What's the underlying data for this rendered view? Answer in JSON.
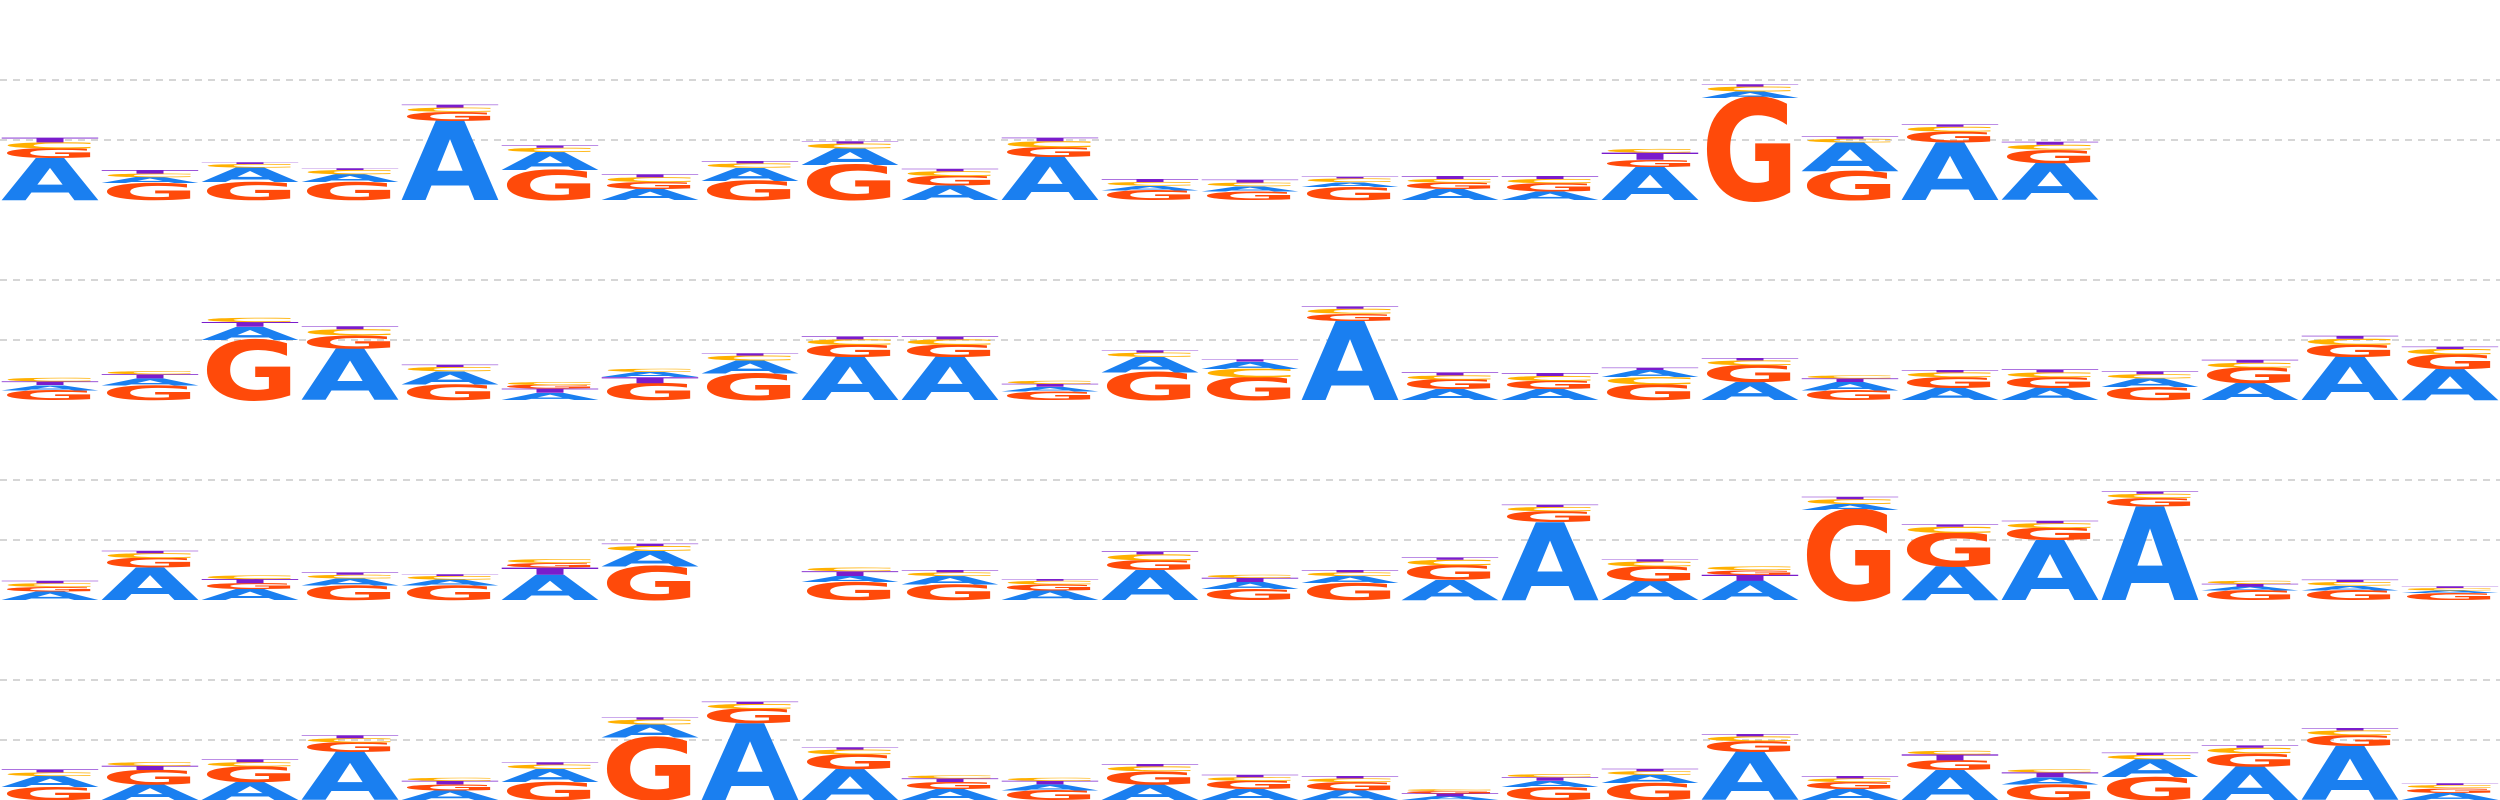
{
  "chart_data": {
    "type": "sequence-logo",
    "colors": {
      "A": "#1a7ff0",
      "C": "#ffb000",
      "G": "#ff4a0a",
      "T": "#7a1ccc"
    },
    "rows": [
      {
        "row_index": 0,
        "positions": [
          {
            "A": 0.7,
            "G": 0.16,
            "C": 0.1,
            "T": 0.08
          },
          {
            "G": 0.28,
            "A": 0.1,
            "C": 0.06,
            "T": 0.06
          },
          {
            "G": 0.3,
            "A": 0.24,
            "C": 0.06,
            "T": 0.03
          },
          {
            "G": 0.3,
            "A": 0.13,
            "C": 0.07,
            "T": 0.03
          },
          {
            "A": 1.32,
            "G": 0.15,
            "C": 0.07,
            "T": 0.05
          },
          {
            "G": 0.5,
            "A": 0.3,
            "C": 0.07,
            "T": 0.04
          },
          {
            "A": 0.18,
            "G": 0.12,
            "C": 0.08,
            "T": 0.05
          },
          {
            "G": 0.32,
            "A": 0.22,
            "C": 0.07,
            "T": 0.04
          },
          {
            "G": 0.58,
            "A": 0.28,
            "C": 0.08,
            "T": 0.04
          },
          {
            "A": 0.24,
            "G": 0.16,
            "C": 0.08,
            "T": 0.04
          },
          {
            "A": 0.72,
            "G": 0.16,
            "C": 0.1,
            "T": 0.06
          },
          {
            "G": 0.16,
            "A": 0.08,
            "C": 0.06,
            "T": 0.05
          },
          {
            "G": 0.14,
            "A": 0.09,
            "C": 0.06,
            "T": 0.05
          },
          {
            "G": 0.22,
            "A": 0.08,
            "C": 0.06,
            "T": 0.03
          },
          {
            "A": 0.18,
            "G": 0.11,
            "C": 0.06,
            "T": 0.05
          },
          {
            "A": 0.14,
            "G": 0.14,
            "C": 0.07,
            "T": 0.05
          },
          {
            "A": 0.55,
            "G": 0.12,
            "T": 0.12,
            "C": 0.06
          },
          {
            "G": 1.7,
            "A": 0.11,
            "C": 0.08,
            "T": 0.04
          },
          {
            "G": 0.48,
            "A": 0.48,
            "C": 0.06,
            "T": 0.04
          },
          {
            "A": 0.96,
            "G": 0.18,
            "C": 0.08,
            "T": 0.04
          },
          {
            "A": 0.62,
            "G": 0.22,
            "C": 0.08,
            "T": 0.05
          }
        ]
      },
      {
        "row_index": 1,
        "positions": [
          {
            "G": 0.16,
            "A": 0.09,
            "T": 0.06,
            "C": 0.06
          },
          {
            "G": 0.24,
            "A": 0.12,
            "T": 0.07,
            "C": 0.05
          },
          {
            "G": 1.0,
            "A": 0.22,
            "T": 0.08,
            "C": 0.07
          },
          {
            "A": 0.86,
            "G": 0.22,
            "C": 0.1,
            "T": 0.05
          },
          {
            "G": 0.26,
            "A": 0.22,
            "C": 0.07,
            "T": 0.04
          },
          {
            "A": 0.12,
            "T": 0.07,
            "G": 0.06,
            "C": 0.05
          },
          {
            "G": 0.28,
            "T": 0.1,
            "A": 0.09,
            "C": 0.05
          },
          {
            "G": 0.44,
            "A": 0.22,
            "C": 0.08,
            "T": 0.04
          },
          {
            "A": 0.72,
            "G": 0.2,
            "C": 0.09,
            "T": 0.05
          },
          {
            "A": 0.72,
            "G": 0.2,
            "C": 0.09,
            "T": 0.05
          },
          {
            "G": 0.14,
            "A": 0.08,
            "T": 0.05,
            "C": 0.05
          },
          {
            "G": 0.46,
            "A": 0.26,
            "C": 0.07,
            "T": 0.04
          },
          {
            "G": 0.38,
            "C": 0.14,
            "A": 0.12,
            "T": 0.04
          },
          {
            "A": 1.32,
            "G": 0.12,
            "C": 0.08,
            "T": 0.04
          },
          {
            "A": 0.18,
            "G": 0.16,
            "C": 0.07,
            "T": 0.05
          },
          {
            "A": 0.18,
            "G": 0.14,
            "C": 0.08,
            "T": 0.05
          },
          {
            "G": 0.26,
            "C": 0.12,
            "A": 0.12,
            "T": 0.04
          },
          {
            "A": 0.3,
            "G": 0.28,
            "C": 0.08,
            "T": 0.04
          },
          {
            "G": 0.16,
            "A": 0.14,
            "T": 0.06,
            "C": 0.05
          },
          {
            "A": 0.2,
            "G": 0.18,
            "C": 0.08,
            "T": 0.04
          },
          {
            "A": 0.2,
            "G": 0.18,
            "C": 0.08,
            "T": 0.05
          },
          {
            "G": 0.22,
            "A": 0.14,
            "C": 0.07,
            "T": 0.05
          },
          {
            "A": 0.28,
            "G": 0.26,
            "C": 0.08,
            "T": 0.05
          },
          {
            "A": 0.72,
            "G": 0.2,
            "C": 0.1,
            "T": 0.05
          },
          {
            "A": 0.52,
            "G": 0.24,
            "C": 0.09,
            "T": 0.04
          }
        ]
      },
      {
        "row_index": 2,
        "positions": [
          {
            "A": 0.14,
            "G": 0.08,
            "C": 0.06,
            "T": 0.04
          },
          {
            "A": 0.54,
            "G": 0.16,
            "C": 0.08,
            "T": 0.04
          },
          {
            "A": 0.18,
            "G": 0.1,
            "T": 0.07,
            "C": 0.06
          },
          {
            "G": 0.24,
            "A": 0.12,
            "C": 0.06,
            "T": 0.04
          },
          {
            "G": 0.24,
            "A": 0.1,
            "C": 0.06,
            "T": 0.03
          },
          {
            "A": 0.42,
            "T": 0.12,
            "G": 0.08,
            "C": 0.06
          },
          {
            "G": 0.56,
            "A": 0.26,
            "C": 0.08,
            "T": 0.04
          },
          {},
          {
            "G": 0.3,
            "A": 0.1,
            "T": 0.08,
            "C": 0.06
          },
          {
            "G": 0.26,
            "A": 0.14,
            "C": 0.06,
            "T": 0.04
          },
          {
            "A": 0.16,
            "G": 0.1,
            "C": 0.06,
            "T": 0.03
          },
          {
            "A": 0.5,
            "G": 0.16,
            "C": 0.1,
            "T": 0.05
          },
          {
            "G": 0.18,
            "A": 0.12,
            "T": 0.07,
            "C": 0.05
          },
          {
            "G": 0.28,
            "A": 0.12,
            "C": 0.06,
            "T": 0.04
          },
          {
            "A": 0.34,
            "G": 0.24,
            "C": 0.09,
            "T": 0.04
          },
          {
            "A": 1.3,
            "G": 0.18,
            "C": 0.07,
            "T": 0.04
          },
          {
            "A": 0.32,
            "G": 0.24,
            "C": 0.08,
            "T": 0.04
          },
          {
            "A": 0.32,
            "T": 0.1,
            "G": 0.08,
            "C": 0.06
          },
          {
            "G": 1.5,
            "A": 0.1,
            "C": 0.08,
            "T": 0.04
          },
          {
            "A": 0.56,
            "G": 0.56,
            "C": 0.1,
            "T": 0.04
          },
          {
            "A": 1.0,
            "G": 0.2,
            "C": 0.08,
            "T": 0.04
          },
          {
            "A": 1.56,
            "G": 0.14,
            "C": 0.07,
            "T": 0.04
          },
          {
            "G": 0.16,
            "A": 0.06,
            "T": 0.05,
            "C": 0.05
          },
          {
            "G": 0.16,
            "A": 0.08,
            "C": 0.06,
            "T": 0.04
          },
          {
            "G": 0.12,
            "A": 0.04,
            "C": 0.04,
            "T": 0.03
          }
        ]
      },
      {
        "row_index": 3,
        "positions": [
          {
            "G": 0.22,
            "A": 0.18,
            "C": 0.06,
            "T": 0.05
          },
          {
            "A": 0.26,
            "G": 0.24,
            "T": 0.07,
            "C": 0.06
          },
          {
            "A": 0.3,
            "G": 0.26,
            "C": 0.07,
            "T": 0.05
          },
          {
            "A": 0.8,
            "G": 0.16,
            "C": 0.07,
            "T": 0.05
          },
          {
            "A": 0.16,
            "G": 0.1,
            "T": 0.06,
            "C": 0.05
          },
          {
            "G": 0.3,
            "A": 0.22,
            "C": 0.07,
            "T": 0.04
          },
          {
            "G": 1.04,
            "A": 0.22,
            "C": 0.08,
            "T": 0.04
          },
          {
            "A": 1.28,
            "G": 0.24,
            "C": 0.08,
            "T": 0.04
          },
          {
            "A": 0.52,
            "G": 0.24,
            "C": 0.08,
            "T": 0.04
          },
          {
            "A": 0.18,
            "G": 0.12,
            "T": 0.06,
            "C": 0.05
          },
          {
            "G": 0.16,
            "A": 0.1,
            "T": 0.06,
            "C": 0.05
          },
          {
            "A": 0.26,
            "G": 0.22,
            "C": 0.08,
            "T": 0.04
          },
          {
            "A": 0.18,
            "G": 0.14,
            "C": 0.06,
            "T": 0.04
          },
          {
            "A": 0.16,
            "G": 0.14,
            "C": 0.06,
            "T": 0.04
          },
          {
            "A": 0.06,
            "T": 0.05,
            "G": 0.04,
            "C": 0.03
          },
          {
            "G": 0.22,
            "A": 0.1,
            "T": 0.06,
            "C": 0.05
          },
          {
            "G": 0.28,
            "A": 0.14,
            "C": 0.06,
            "T": 0.04
          },
          {
            "A": 0.8,
            "G": 0.18,
            "C": 0.08,
            "T": 0.04
          },
          {
            "A": 0.18,
            "G": 0.12,
            "C": 0.06,
            "T": 0.04
          },
          {
            "A": 0.5,
            "G": 0.16,
            "T": 0.1,
            "C": 0.06
          },
          {
            "G": 0.26,
            "A": 0.12,
            "T": 0.08,
            "C": 0.05
          },
          {
            "G": 0.38,
            "A": 0.3,
            "C": 0.07,
            "T": 0.04
          },
          {
            "A": 0.56,
            "G": 0.22,
            "C": 0.09,
            "T": 0.04
          },
          {
            "A": 0.9,
            "G": 0.18,
            "C": 0.08,
            "T": 0.04
          },
          {
            "A": 0.12,
            "G": 0.08,
            "C": 0.05,
            "T": 0.03
          }
        ]
      }
    ]
  }
}
